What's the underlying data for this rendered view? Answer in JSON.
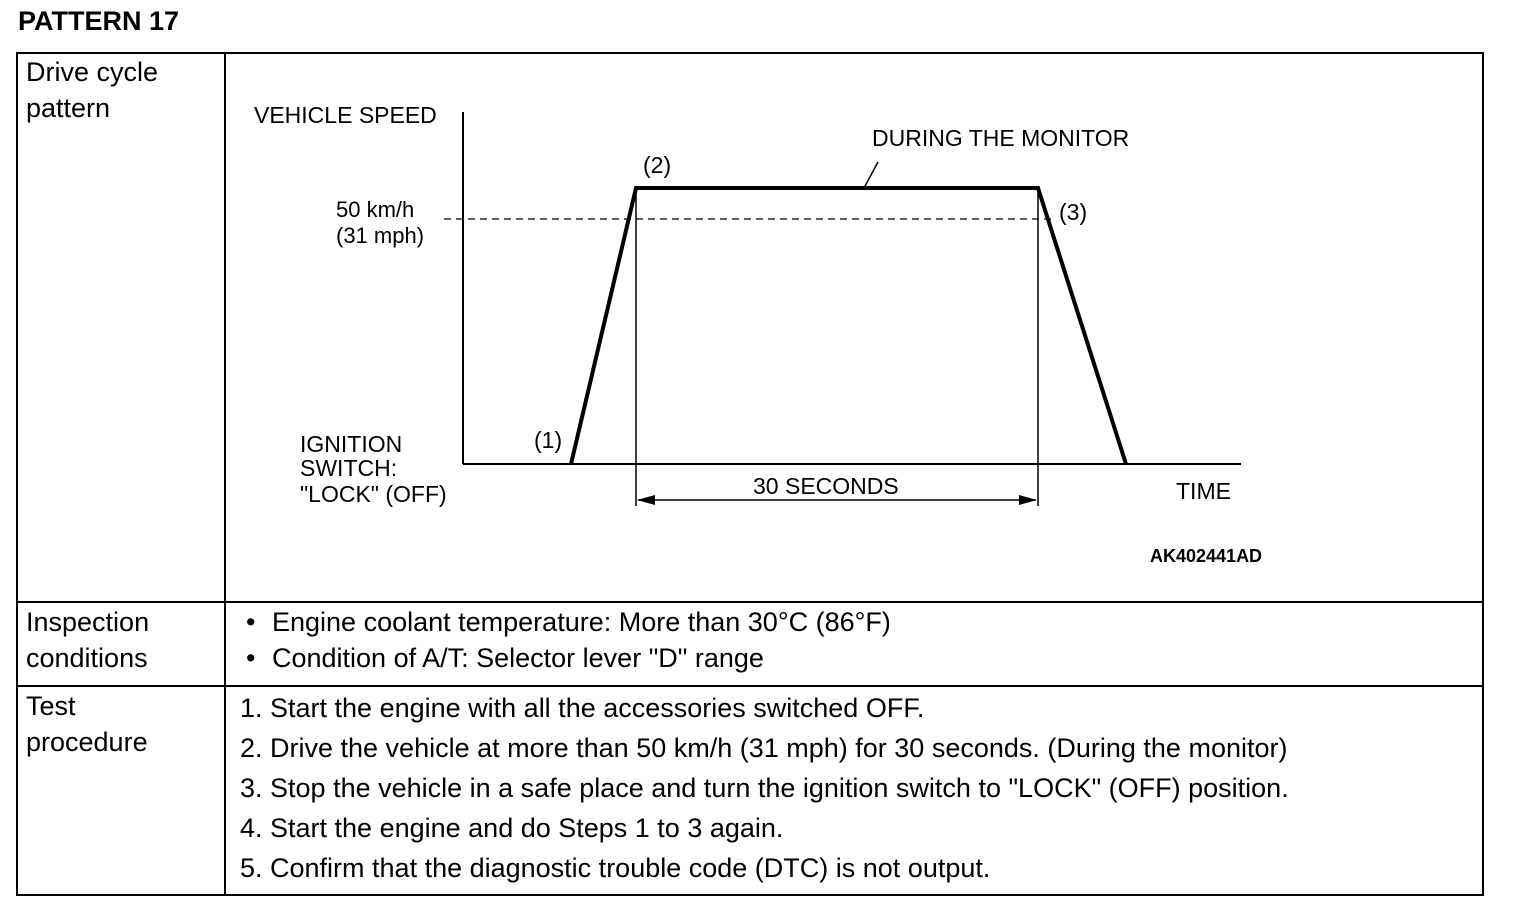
{
  "title": "PATTERN 17",
  "rows": {
    "drive_cycle": {
      "label_line1": "Drive cycle",
      "label_line2": "pattern"
    },
    "inspection": {
      "label_line1": "Inspection",
      "label_line2": "conditions"
    },
    "procedure": {
      "label_line1": "Test",
      "label_line2": "procedure"
    }
  },
  "diagram": {
    "y_axis_label": "VEHICLE SPEED",
    "x_axis_label": "TIME",
    "speed_line1": "50 km/h",
    "speed_line2": "(31 mph)",
    "monitor_label": "DURING THE MONITOR",
    "point1": "(1)",
    "point2": "(2)",
    "point3": "(3)",
    "ignition_line1": "IGNITION",
    "ignition_line2": "SWITCH:",
    "ignition_line3": "\"LOCK\" (OFF)",
    "duration_label": "30 SECONDS",
    "figure_code": "AK402441AD"
  },
  "inspection_conditions": [
    "Engine coolant temperature: More than 30°C (86°F)",
    "Condition of A/T: Selector lever \"D\" range"
  ],
  "test_procedure": [
    "1. Start the engine with all the accessories switched OFF.",
    "2. Drive the vehicle at more than 50 km/h (31 mph) for 30 seconds. (During the monitor)",
    "3. Stop the vehicle in a safe place and turn the ignition switch to \"LOCK\" (OFF) position.",
    "4. Start the engine and do Steps 1 to 3 again.",
    "5. Confirm that the diagnostic trouble code (DTC) is not output."
  ]
}
